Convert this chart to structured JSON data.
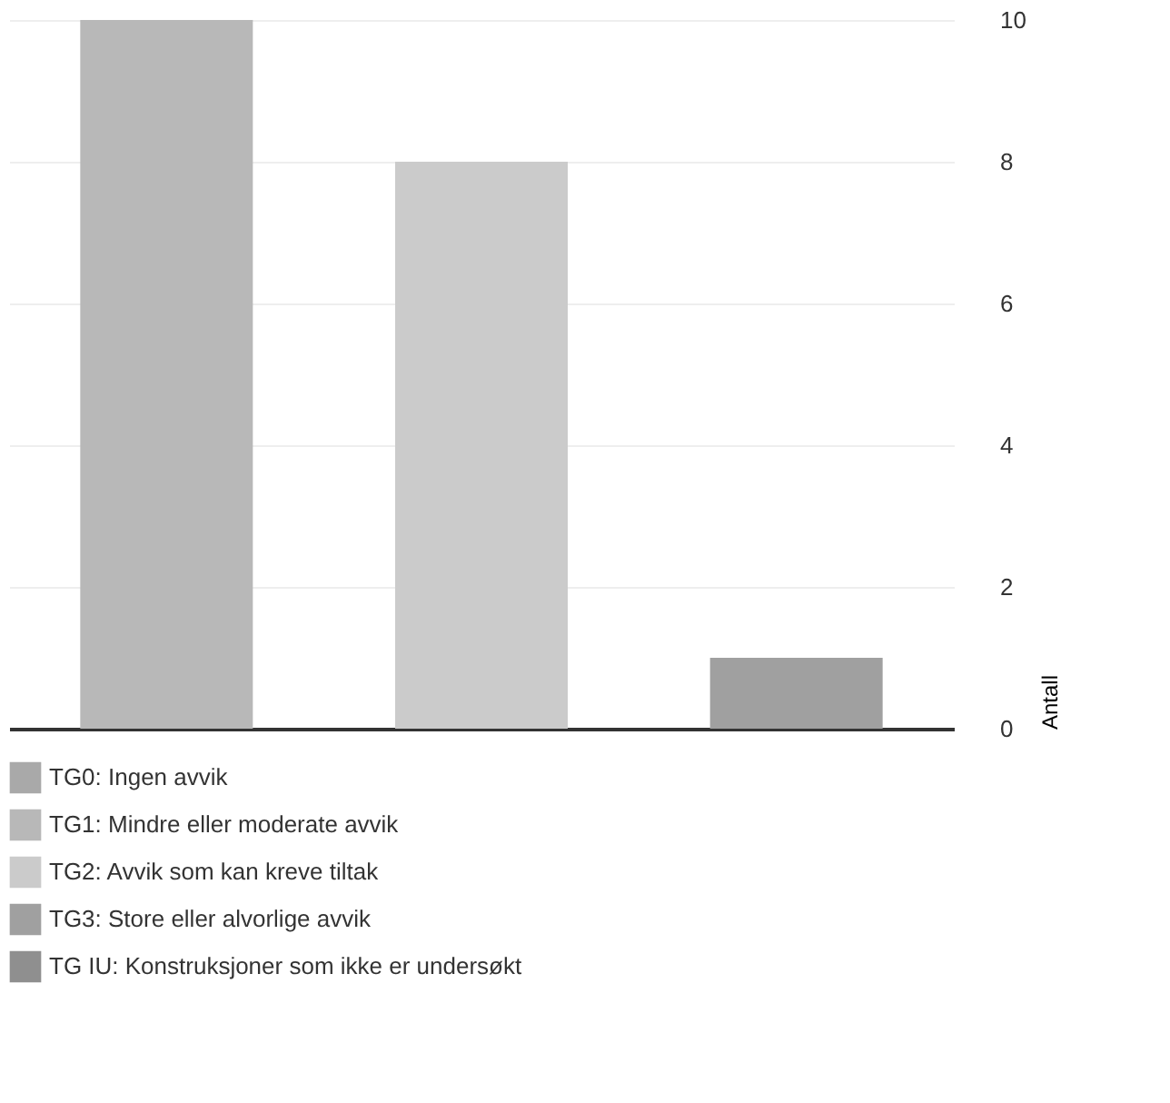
{
  "chart_data": {
    "type": "bar",
    "ylabel": "Antall",
    "categories": [
      null,
      null,
      null
    ],
    "series": [
      {
        "name": "TG0: Ingen avvik",
        "color": "#a9a9a9",
        "values": [
          null,
          null,
          null
        ]
      },
      {
        "name": "TG1: Mindre eller moderate avvik",
        "color": "#b8b8b8",
        "values": [
          10,
          null,
          null
        ]
      },
      {
        "name": "TG2: Avvik som kan kreve tiltak",
        "color": "#cbcbcb",
        "values": [
          null,
          8,
          null
        ]
      },
      {
        "name": "TG3: Store eller alvorlige avvik",
        "color": "#a0a0a0",
        "values": [
          null,
          null,
          1
        ]
      },
      {
        "name": "TG IU: Konstruksjoner som ikke er undersøkt",
        "color": "#8f8f8f",
        "values": [
          null,
          null,
          null
        ]
      }
    ],
    "ylim": [
      0,
      10
    ],
    "yticks": [
      0,
      2,
      4,
      6,
      8,
      10
    ],
    "grid": "y",
    "legend": "bottom",
    "tick_labels": "y"
  }
}
